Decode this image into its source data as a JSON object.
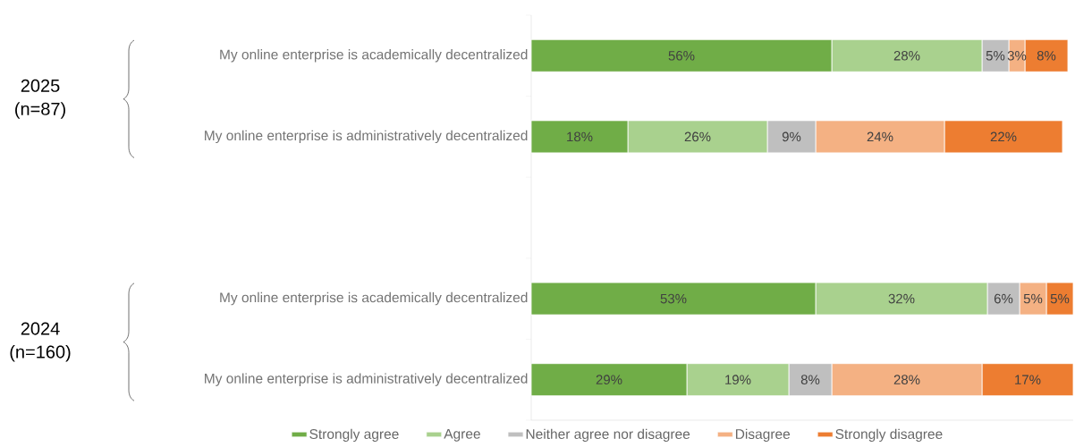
{
  "chart_data": {
    "type": "bar",
    "orientation": "horizontal",
    "stacked": true,
    "data_labels": true,
    "legend": "bottom",
    "categories": [
      "My online enterprise is academically decentralized",
      "My online enterprise is administratively decentralized",
      null,
      "My online enterprise is academically decentralized",
      "My online enterprise is administratively decentralized"
    ],
    "series": [
      {
        "name": "Strongly agree",
        "color": "#70ad47",
        "values": [
          56,
          18,
          null,
          53,
          29
        ],
        "value_labels": [
          "56%",
          "18%",
          null,
          "53%",
          "29%"
        ]
      },
      {
        "name": "Agree",
        "color": "#a9d18e",
        "values": [
          28,
          26,
          null,
          32,
          19
        ],
        "value_labels": [
          "28%",
          "26%",
          null,
          "32%",
          "19%"
        ]
      },
      {
        "name": "Neither agree nor disagree",
        "color": "#bfbfbf",
        "values": [
          5,
          9,
          null,
          6,
          8
        ],
        "value_labels": [
          "5%",
          "9%",
          null,
          "6%",
          "8%"
        ]
      },
      {
        "name": "Disagree",
        "color": "#f4b183",
        "values": [
          3,
          24,
          null,
          5,
          28
        ],
        "value_labels": [
          "3%",
          "24%",
          null,
          "5%",
          "28%"
        ]
      },
      {
        "name": "Strongly disagree",
        "color": "#ed7d31",
        "values": [
          8,
          22,
          null,
          5,
          17
        ],
        "value_labels": [
          "8%",
          "22%",
          null,
          "5%",
          "17%"
        ]
      }
    ],
    "annotations": [
      "2025 (n=87)",
      "2024 (n=160)"
    ]
  }
}
